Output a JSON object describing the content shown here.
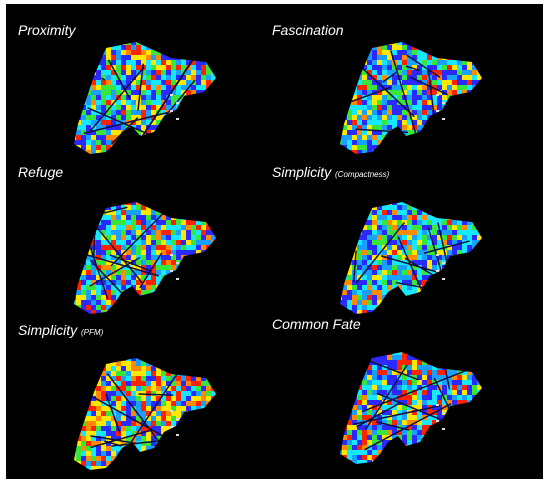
{
  "panels": [
    {
      "title": "Proximity",
      "subtitle": "",
      "palette": [
        "#2a2aff",
        "#19a0ff",
        "#15e8ff",
        "#38e53a",
        "#ffe800",
        "#ff8a00",
        "#ff2200"
      ],
      "weights": [
        0.18,
        0.14,
        0.16,
        0.18,
        0.14,
        0.08,
        0.12
      ]
    },
    {
      "title": "Fascination",
      "subtitle": "",
      "palette": [
        "#2a2aff",
        "#19a0ff",
        "#15e8ff",
        "#38e53a",
        "#ffe800",
        "#ff8a00",
        "#ff2200"
      ],
      "weights": [
        0.26,
        0.2,
        0.18,
        0.14,
        0.1,
        0.06,
        0.06
      ]
    },
    {
      "title": "Refuge",
      "subtitle": "",
      "palette": [
        "#2a2aff",
        "#19a0ff",
        "#15e8ff",
        "#38e53a",
        "#ffe800",
        "#ff8a00",
        "#ff2200"
      ],
      "weights": [
        0.2,
        0.16,
        0.16,
        0.14,
        0.12,
        0.08,
        0.14
      ]
    },
    {
      "title": "Simplicity",
      "subtitle": "(Compactness)",
      "palette": [
        "#2a2aff",
        "#19a0ff",
        "#15e8ff",
        "#38e53a",
        "#ffe800",
        "#ff8a00",
        "#ff2200"
      ],
      "weights": [
        0.22,
        0.18,
        0.24,
        0.14,
        0.1,
        0.06,
        0.06
      ]
    },
    {
      "title": "Simplicity",
      "subtitle": "(PFM)",
      "palette": [
        "#2a2aff",
        "#19a0ff",
        "#15e8ff",
        "#38e53a",
        "#ffe800",
        "#ff8a00",
        "#ff2200"
      ],
      "weights": [
        0.14,
        0.12,
        0.1,
        0.1,
        0.24,
        0.12,
        0.18
      ]
    },
    {
      "title": "Common Fate",
      "subtitle": "",
      "palette": [
        "#2a2aff",
        "#19a0ff",
        "#15e8ff",
        "#38e53a",
        "#ffe800",
        "#ff8a00",
        "#ff2200"
      ],
      "weights": [
        0.26,
        0.16,
        0.16,
        0.1,
        0.1,
        0.08,
        0.14
      ]
    }
  ]
}
